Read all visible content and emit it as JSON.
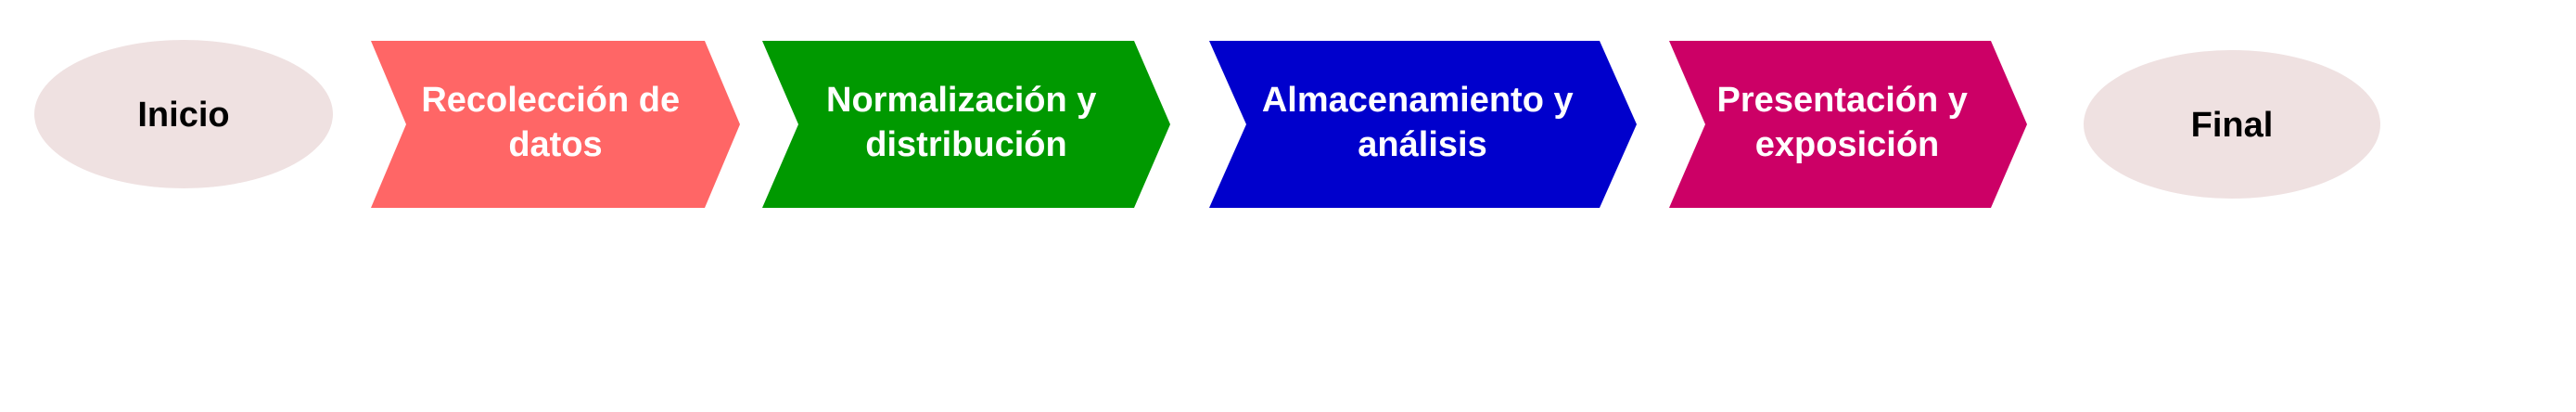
{
  "diagram": {
    "start": {
      "label": "Inicio",
      "fill": "#efe1e1",
      "text_color": "#000000"
    },
    "steps": [
      {
        "lines": [
          "Recolección de",
          "datos"
        ],
        "fill": "#ff6666",
        "text_color": "#ffffff"
      },
      {
        "lines": [
          "Normalización y",
          "distribución"
        ],
        "fill": "#009900",
        "text_color": "#ffffff"
      },
      {
        "lines": [
          "Almacenamiento y",
          "análisis"
        ],
        "fill": "#0000cc",
        "text_color": "#ffffff"
      },
      {
        "lines": [
          "Presentación y",
          "exposición"
        ],
        "fill": "#cc0066",
        "text_color": "#ffffff"
      }
    ],
    "end": {
      "label": "Final",
      "fill": "#efe1e1",
      "text_color": "#000000"
    }
  }
}
